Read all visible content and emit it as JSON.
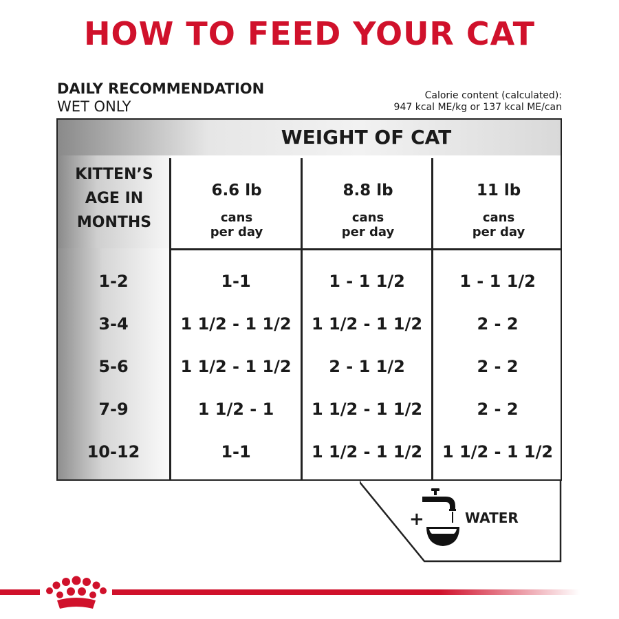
{
  "colors": {
    "brand_red": "#d0112b",
    "text": "#1a1a1a",
    "border": "#222222"
  },
  "title": "HOW TO FEED YOUR CAT",
  "daily": {
    "line1": "DAILY RECOMMENDATION",
    "line2": "WET ONLY"
  },
  "calorie": {
    "line1": "Calorie content (calculated):",
    "line2": "947 kcal ME/kg or 137 kcal ME/can"
  },
  "table": {
    "weight_title": "WEIGHT OF CAT",
    "age_header": [
      "KITTEN’S",
      "AGE IN",
      "MONTHS"
    ],
    "columns": [
      {
        "weight": "6.6 lb",
        "unit1": "cans",
        "unit2": "per day"
      },
      {
        "weight": "8.8 lb",
        "unit1": "cans",
        "unit2": "per day"
      },
      {
        "weight": "11 lb",
        "unit1": "cans",
        "unit2": "per day"
      }
    ],
    "rows": [
      {
        "age": "1-2",
        "values": [
          "1-1",
          "1 - 1 1/2",
          "1 - 1 1/2"
        ]
      },
      {
        "age": "3-4",
        "values": [
          "1 1/2 - 1 1/2",
          "1 1/2 - 1 1/2",
          "2 - 2"
        ]
      },
      {
        "age": "5-6",
        "values": [
          "1 1/2 - 1 1/2",
          "2 - 1 1/2",
          "2 - 2"
        ]
      },
      {
        "age": "7-9",
        "values": [
          "1 1/2 - 1",
          "1 1/2 - 1 1/2",
          "2 - 2"
        ]
      },
      {
        "age": "10-12",
        "values": [
          "1-1",
          "1 1/2 - 1 1/2",
          "1 1/2 - 1 1/2"
        ]
      }
    ]
  },
  "water": {
    "plus": "+",
    "label": "WATER",
    "icon": "faucet-bowl-icon"
  },
  "logo": {
    "icon": "crown-icon"
  }
}
